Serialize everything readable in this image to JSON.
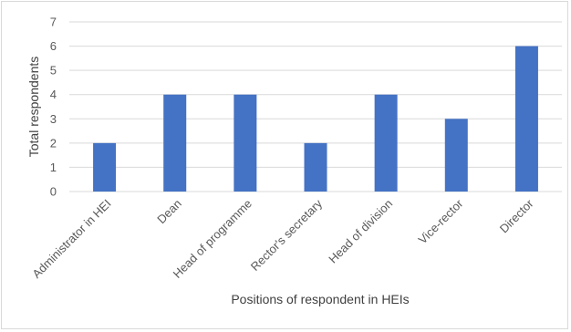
{
  "chart_data": {
    "type": "bar",
    "categories": [
      "Administrator in HEI",
      "Dean",
      "Head of programme",
      "Rector's secretary",
      "Head of division",
      "Vice-rector",
      "Director"
    ],
    "values": [
      2,
      4,
      4,
      2,
      4,
      3,
      6
    ],
    "xlabel": "Positions of respondent in HEIs",
    "ylabel": "Total respondents",
    "ylim": [
      0,
      7
    ],
    "yticks": [
      "0",
      "1",
      "2",
      "3",
      "4",
      "5",
      "6",
      "7"
    ],
    "grid": true,
    "bar_color": "#4472c4",
    "grid_color": "#d9d9d9"
  }
}
